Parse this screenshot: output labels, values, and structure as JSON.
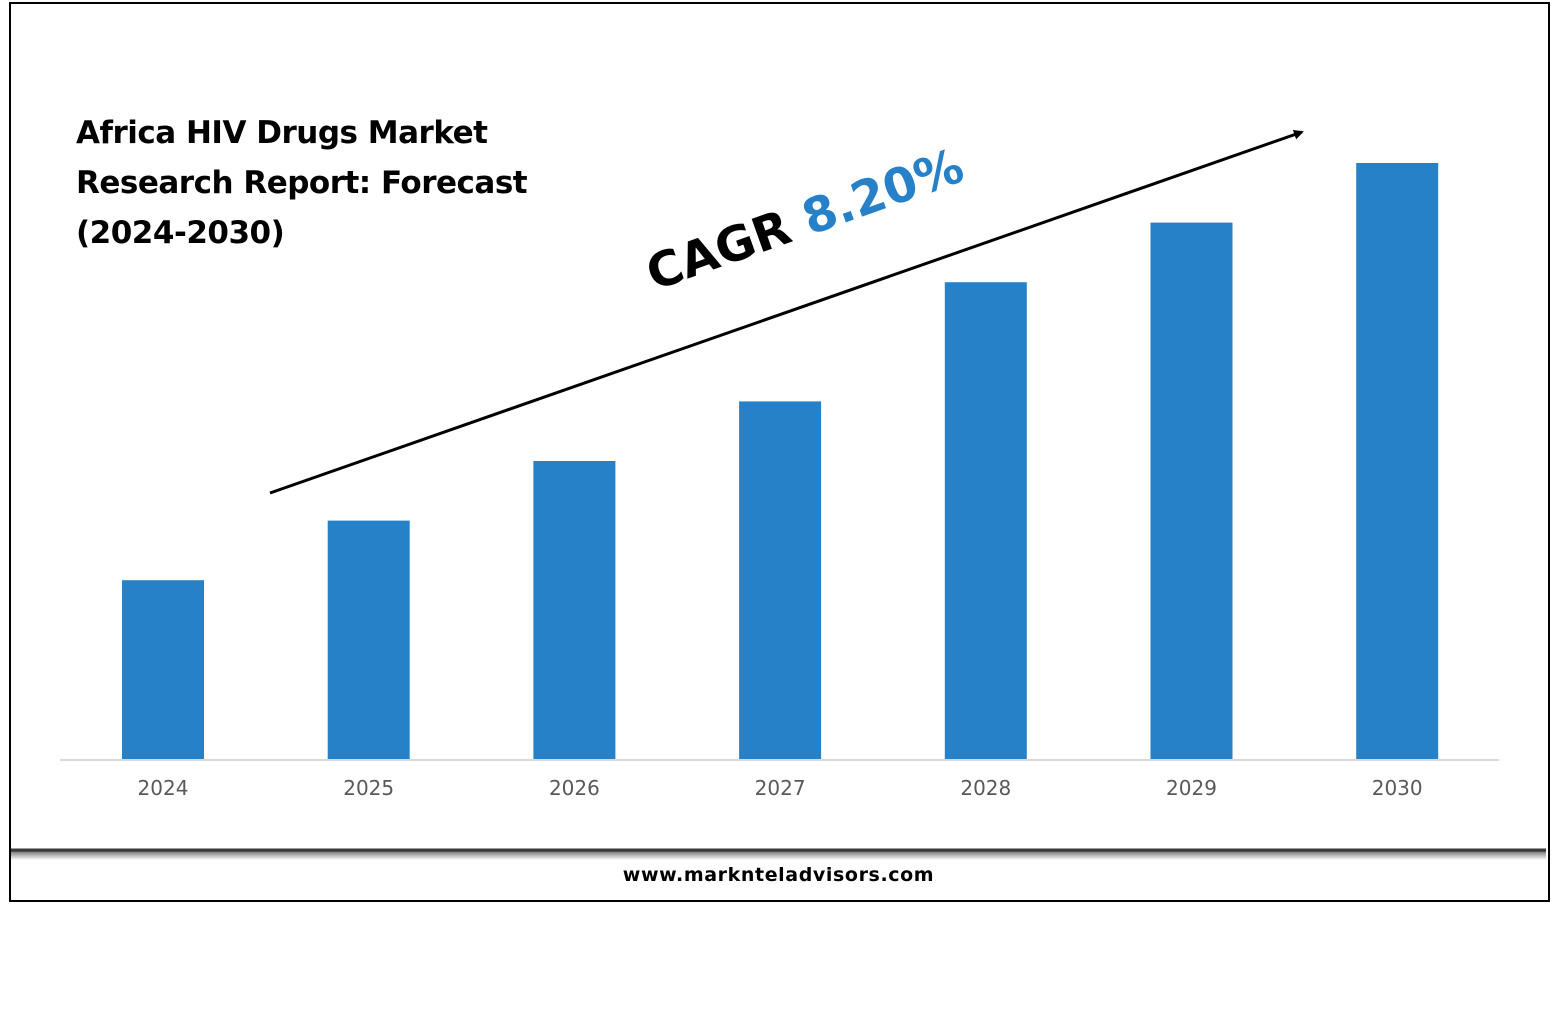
{
  "colors": {
    "bar": "#2681c8",
    "cagr_value": "#2681c8",
    "text": "#000000",
    "tick_text": "#595959",
    "axis": "#d9d9d9"
  },
  "title_lines": [
    "Africa HIV Drugs Market",
    "Research Report: Forecast",
    "(2024-2030)"
  ],
  "cagr": {
    "label": "CAGR",
    "value": "8.20%"
  },
  "footer": {
    "url": "www.marknteladvisors.com"
  },
  "chart_data": {
    "type": "bar",
    "categories": [
      "2024",
      "2025",
      "2026",
      "2027",
      "2028",
      "2029",
      "2030"
    ],
    "values": [
      30,
      40,
      50,
      60,
      80,
      90,
      100
    ],
    "title": "Africa HIV Drugs Market Research Report: Forecast (2024-2030)",
    "xlabel": "",
    "ylabel": "",
    "ylim": [
      0,
      100
    ],
    "grid": false,
    "legend": "none",
    "annotation": "CAGR 8.20%"
  }
}
